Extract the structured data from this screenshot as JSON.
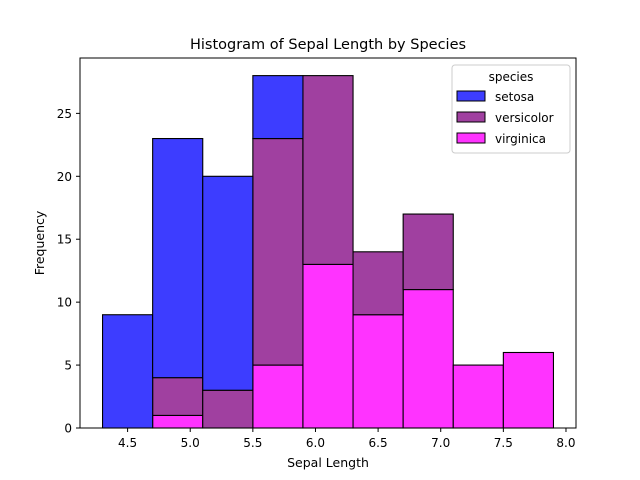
{
  "chart_data": {
    "type": "bar",
    "stacked": true,
    "title": "Histogram of Sepal Length by Species",
    "xlabel": "Sepal Length",
    "ylabel": "Frequency",
    "xlim": [
      4.12,
      8.08
    ],
    "ylim": [
      0,
      29.4
    ],
    "xticks": [
      4.5,
      5.0,
      5.5,
      6.0,
      6.5,
      7.0,
      7.5,
      8.0
    ],
    "xtick_labels": [
      "4.5",
      "5.0",
      "5.5",
      "6.0",
      "6.5",
      "7.0",
      "7.5",
      "8.0"
    ],
    "yticks": [
      0,
      5,
      10,
      15,
      20,
      25
    ],
    "ytick_labels": [
      "0",
      "5",
      "10",
      "15",
      "20",
      "25"
    ],
    "bin_edges": [
      4.3,
      4.7,
      5.1,
      5.5,
      5.9,
      6.3,
      6.7,
      7.1,
      7.5,
      7.9
    ],
    "legend": {
      "title": "species",
      "placement": "upper-right"
    },
    "grid": false,
    "series": [
      {
        "name": "virginica",
        "color": "#ff33ff",
        "values": [
          0,
          1,
          0,
          5,
          13,
          9,
          11,
          5,
          6
        ]
      },
      {
        "name": "versicolor",
        "color": "#a040a0",
        "values": [
          0,
          3,
          3,
          18,
          15,
          5,
          6,
          0,
          0
        ]
      },
      {
        "name": "setosa",
        "color": "#3d3dff",
        "values": [
          9,
          19,
          17,
          5,
          0,
          0,
          0,
          0,
          0
        ]
      }
    ],
    "legend_order": [
      "setosa",
      "versicolor",
      "virginica"
    ]
  }
}
